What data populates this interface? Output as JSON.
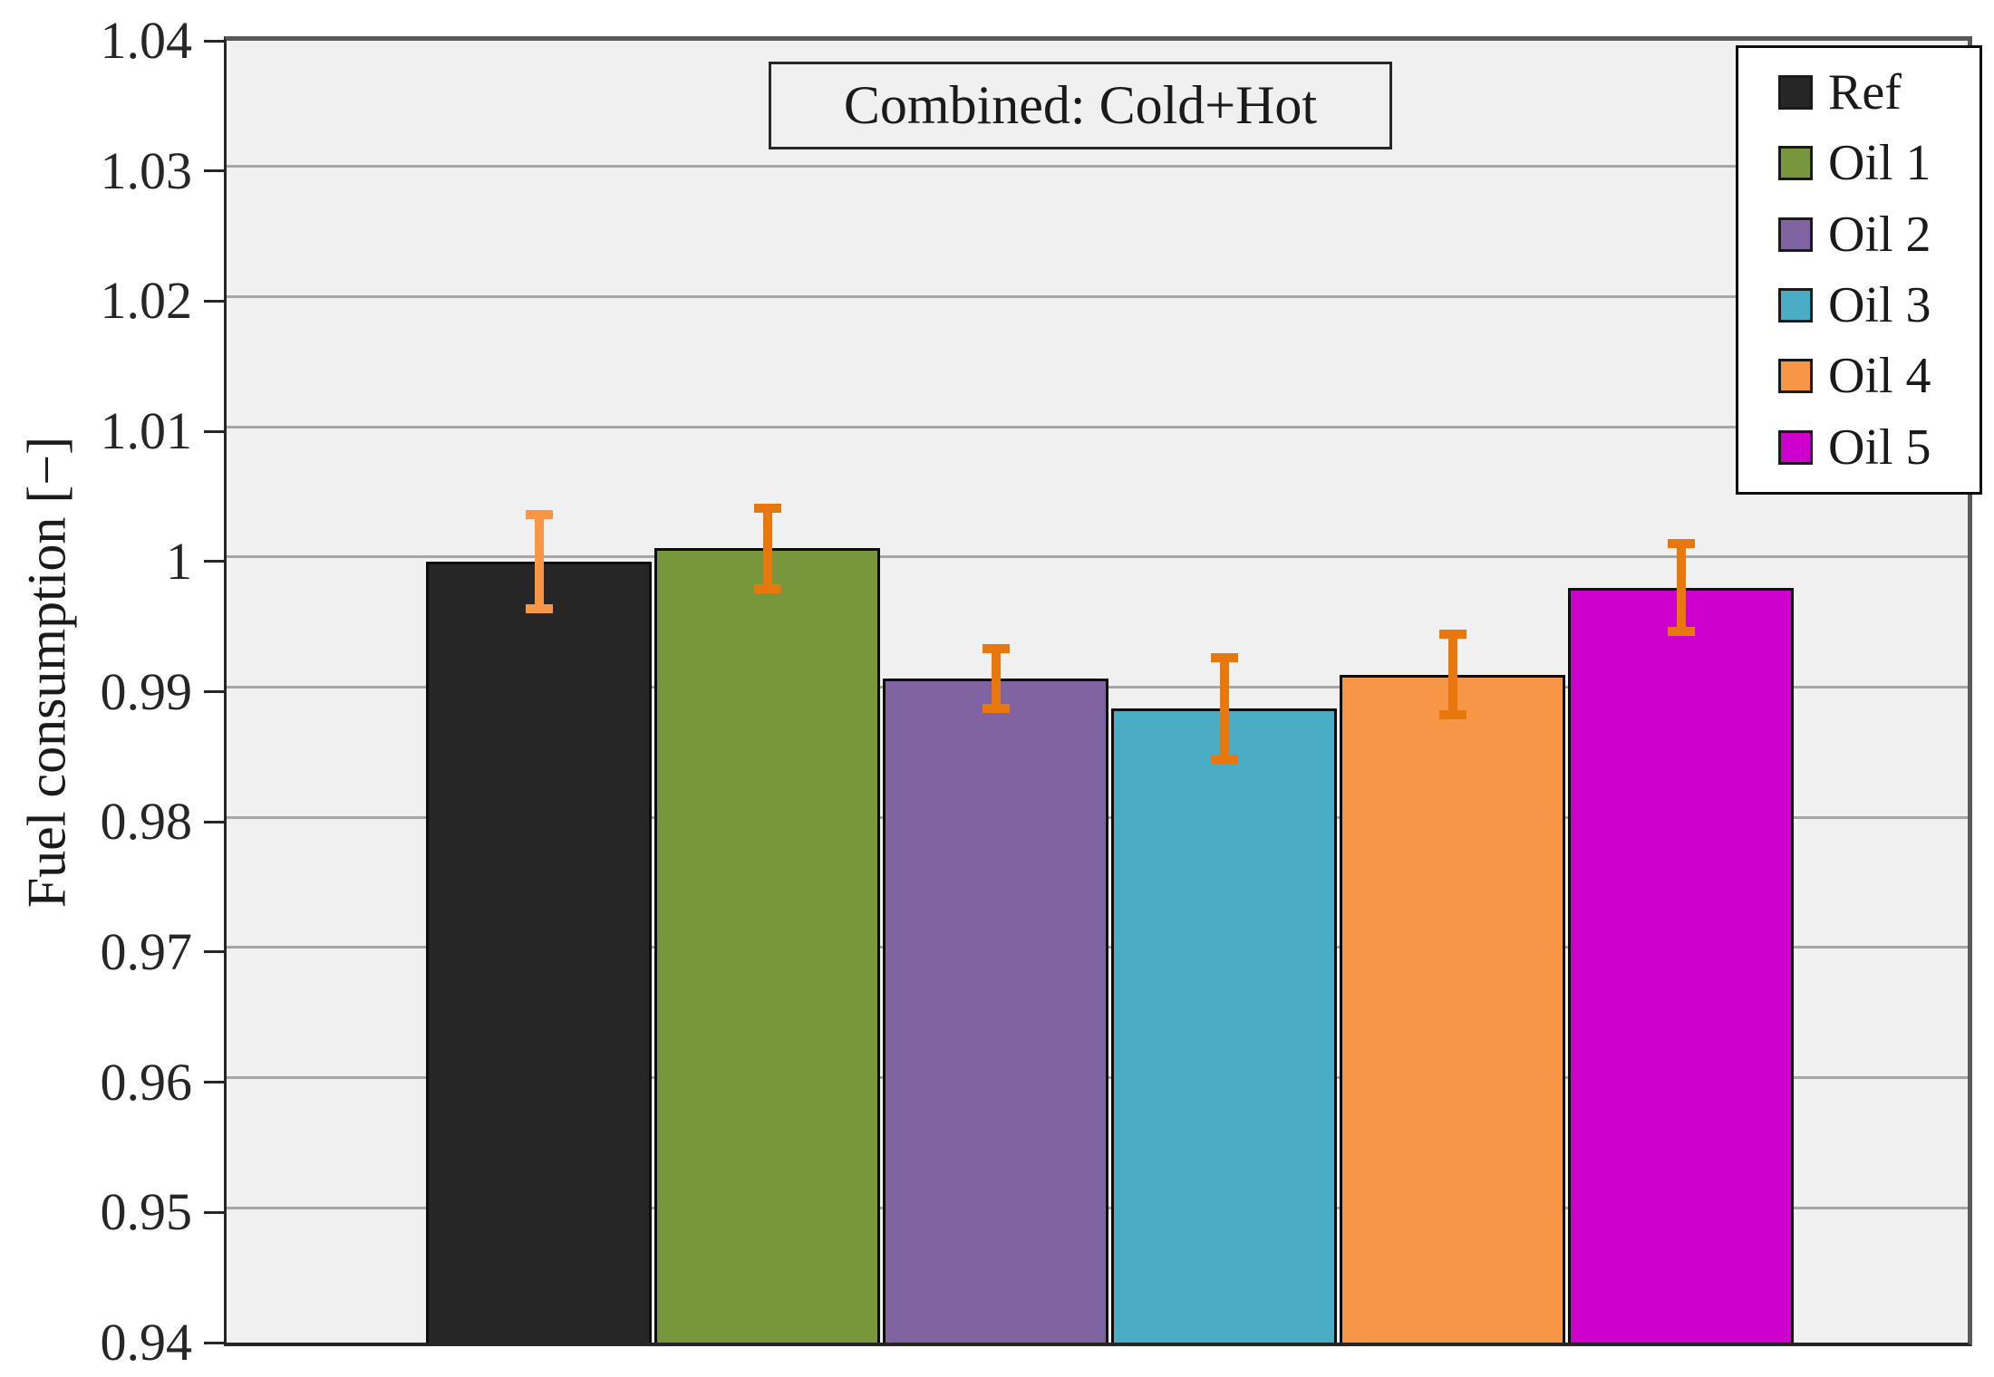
{
  "chart_data": {
    "type": "bar",
    "title": "Combined: Cold+Hot",
    "ylabel": "Fuel consumption [−]",
    "xlabel": "",
    "ylim": [
      0.94,
      1.04
    ],
    "grid": "horizontal, every 0.01",
    "legend_position": "top-right",
    "plot_background": "#F0F0F0",
    "gridline_color": "#A6A6A6",
    "yticks": [
      {
        "value": 1.04,
        "label": "1.04"
      },
      {
        "value": 1.03,
        "label": "1.03"
      },
      {
        "value": 1.02,
        "label": "1.02"
      },
      {
        "value": 1.01,
        "label": "1.01"
      },
      {
        "value": 1.0,
        "label": "1"
      },
      {
        "value": 0.99,
        "label": "0.99"
      },
      {
        "value": 0.98,
        "label": "0.98"
      },
      {
        "value": 0.97,
        "label": "0.97"
      },
      {
        "value": 0.96,
        "label": "0.96"
      },
      {
        "value": 0.95,
        "label": "0.95"
      },
      {
        "value": 0.94,
        "label": "0.94"
      }
    ],
    "categories": [
      "Ref",
      "Oil 1",
      "Oil 2",
      "Oil 3",
      "Oil 4",
      "Oil 5"
    ],
    "bars": [
      {
        "label": "Ref",
        "value": 1.0,
        "error": 0.0036,
        "color": "#262626",
        "error_color": "#F79646"
      },
      {
        "label": "Oil 1",
        "value": 1.001,
        "error": 0.0031,
        "color": "#78973C",
        "error_color": "#E8770E"
      },
      {
        "label": "Oil 2",
        "value": 0.991,
        "error": 0.0023,
        "color": "#8064A2",
        "error_color": "#E8770E"
      },
      {
        "label": "Oil 3",
        "value": 0.9887,
        "error": 0.0039,
        "color": "#4BACC6",
        "error_color": "#E8770E"
      },
      {
        "label": "Oil 4",
        "value": 0.9913,
        "error": 0.0031,
        "color": "#F79646",
        "error_color": "#E8770E"
      },
      {
        "label": "Oil 5",
        "value": 0.998,
        "error": 0.0034,
        "color": "#CE00CE",
        "error_color": "#E8770E"
      }
    ]
  }
}
